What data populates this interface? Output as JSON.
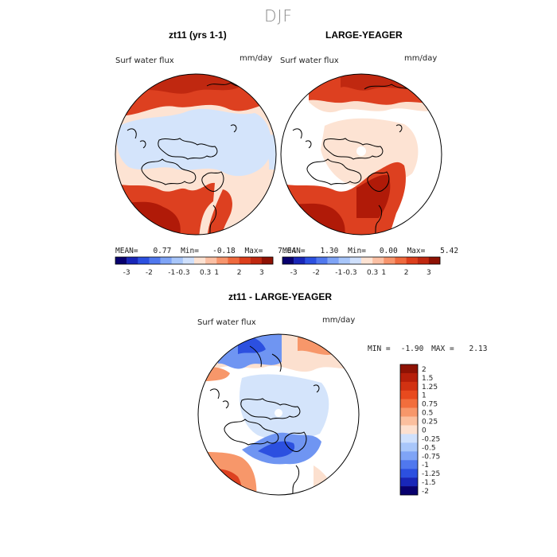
{
  "figure": {
    "season": "DJF"
  },
  "panels": [
    {
      "title": "zt11 (yrs 1-1)",
      "variable": "Surf water flux",
      "units": "mm/day",
      "stats": {
        "mean_label": "MEAN=",
        "mean": "0.77",
        "min_label": "Min=",
        "min": "-0.18",
        "max_label": "Max=",
        "max": "7.04"
      }
    },
    {
      "title": "LARGE-YEAGER",
      "variable": "Surf water flux",
      "units": "mm/day",
      "stats": {
        "mean_label": "MEAN=",
        "mean": "1.30",
        "min_label": "Min=",
        "min": "0.00",
        "max_label": "Max=",
        "max": "5.42"
      }
    },
    {
      "title": "zt11 - LARGE-YEAGER",
      "variable": "Surf water flux",
      "units": "mm/day",
      "stats": {
        "min_label": "MIN =",
        "min": "-1.90",
        "max_label": "MAX =",
        "max": "2.13"
      }
    }
  ],
  "colorbars": {
    "field": {
      "colors": [
        "#08006e",
        "#1826b8",
        "#2c50e0",
        "#5078ee",
        "#7fa4f6",
        "#a8c6fa",
        "#cfe0fc",
        "#fde3d3",
        "#fbc0a4",
        "#f7956d",
        "#ef6a3e",
        "#dd3f1c",
        "#c02810",
        "#8e1204"
      ],
      "tick_labels": [
        "-3",
        "-2",
        "-1",
        "-0.3",
        "0.3",
        "1",
        "2",
        "3"
      ]
    },
    "difference": {
      "colors": [
        "#8e1204",
        "#b61f0a",
        "#d23212",
        "#e84a1e",
        "#f26e3c",
        "#f7976a",
        "#fbbf9e",
        "#fde0cf",
        "#cfe0fc",
        "#a8c6fa",
        "#7fa4f6",
        "#5078ee",
        "#2c50e0",
        "#1826b8",
        "#08006e"
      ],
      "tick_labels": [
        "2",
        "1.5",
        "1.25",
        "1",
        "0.75",
        "0.5",
        "0.25",
        "0",
        "-0.25",
        "-0.5",
        "-0.75",
        "-1",
        "-1.25",
        "-1.5",
        "-2"
      ]
    }
  },
  "map_colors": {
    "land": "#ffffff",
    "coast": "#000000",
    "strong_pos": "#b01a08",
    "mid_pos": "#dd4020",
    "light_pos": "#fce0cf",
    "light_neg": "#d4e4fb",
    "mid_neg": "#6f95f2",
    "strong_neg": "#2c50e0"
  }
}
